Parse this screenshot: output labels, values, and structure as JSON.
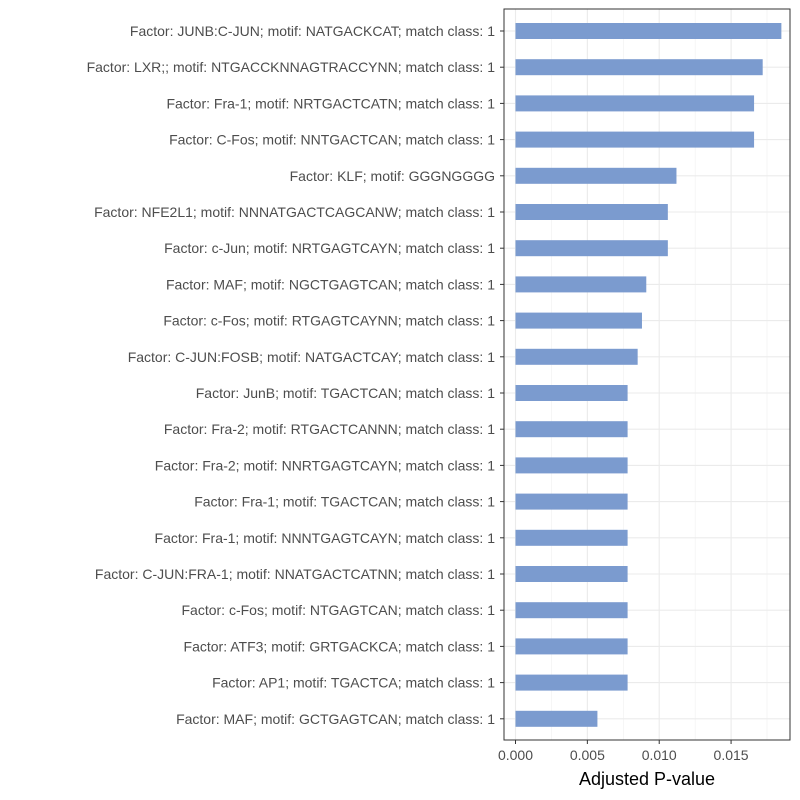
{
  "chart_data": {
    "type": "bar",
    "orientation": "horizontal",
    "xlabel": "Adjusted P-value",
    "ylabel": "",
    "xlim": [
      -0.0008,
      0.0191
    ],
    "xticks": [
      0.0,
      0.005,
      0.01,
      0.015
    ],
    "xtick_labels": [
      "0.000",
      "0.005",
      "0.010",
      "0.015"
    ],
    "grid": true,
    "legend": "none",
    "bar_color": "#7b9bcf",
    "categories": [
      "Factor: JUNB:C-JUN; motif: NATGACKCAT; match class: 1",
      "Factor: LXR;; motif: NTGACCKNNAGTRACCYNN; match class: 1",
      "Factor: Fra-1; motif: NRTGACTCATN; match class: 1",
      "Factor: C-Fos; motif: NNTGACTCAN; match class: 1",
      "Factor: KLF; motif: GGGNGGGG",
      "Factor: NFE2L1; motif: NNNATGACTCAGCANW; match class: 1",
      "Factor: c-Jun; motif: NRTGAGTCAYN; match class: 1",
      "Factor: MAF; motif: NGCTGAGTCAN; match class: 1",
      "Factor: c-Fos; motif: RTGAGTCAYNN; match class: 1",
      "Factor: C-JUN:FOSB; motif: NATGACTCAY; match class: 1",
      "Factor: JunB; motif: TGACTCAN; match class: 1",
      "Factor: Fra-2; motif: RTGACTCANNN; match class: 1",
      "Factor: Fra-2; motif: NNRTGAGTCAYN; match class: 1",
      "Factor: Fra-1; motif: TGACTCAN; match class: 1",
      "Factor: Fra-1; motif: NNNTGAGTCAYN; match class: 1",
      "Factor: C-JUN:FRA-1; motif: NNATGACTCATNN; match class: 1",
      "Factor: c-Fos; motif: NTGAGTCAN; match class: 1",
      "Factor: ATF3; motif: GRTGACKCA; match class: 1",
      "Factor: AP1; motif: TGACTCA; match class: 1",
      "Factor: MAF; motif: GCTGAGTCAN; match class: 1"
    ],
    "values": [
      0.0185,
      0.0172,
      0.0166,
      0.0166,
      0.0112,
      0.0106,
      0.0106,
      0.0091,
      0.0088,
      0.0085,
      0.0078,
      0.0078,
      0.0078,
      0.0078,
      0.0078,
      0.0078,
      0.0078,
      0.0078,
      0.0078,
      0.0057
    ]
  }
}
